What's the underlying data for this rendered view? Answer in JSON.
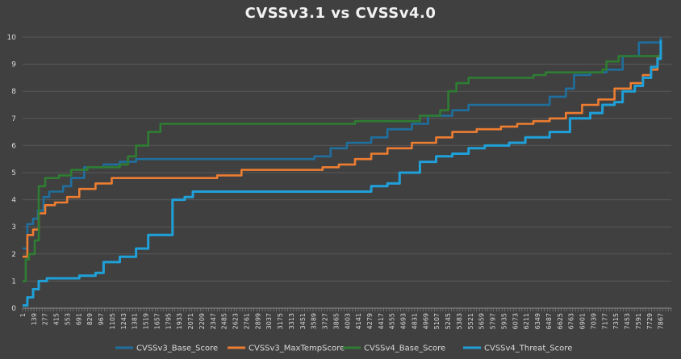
{
  "chart_data": {
    "type": "line",
    "title": "CVSSv3.1 vs CVSSv4.0",
    "xlabel": "",
    "ylabel": "",
    "xlim": [
      1,
      8000
    ],
    "ylim": [
      0,
      10
    ],
    "y_ticks": [
      "0",
      "1",
      "2",
      "3",
      "4",
      "5",
      "6",
      "7",
      "8",
      "9",
      "10"
    ],
    "x_tick_labels": [
      "1",
      "139",
      "277",
      "415",
      "553",
      "691",
      "829",
      "967",
      "1105",
      "1243",
      "1381",
      "1519",
      "1657",
      "1795",
      "1933",
      "2071",
      "2209",
      "2347",
      "2485",
      "2623",
      "2761",
      "2899",
      "3037",
      "3175",
      "3313",
      "3451",
      "3589",
      "3727",
      "3865",
      "4003",
      "4141",
      "4279",
      "4417",
      "4555",
      "4693",
      "4831",
      "4969",
      "5107",
      "5245",
      "5383",
      "5521",
      "5659",
      "5797",
      "5935",
      "6073",
      "6211",
      "6349",
      "6487",
      "6625",
      "6763",
      "6901",
      "7039",
      "7177",
      "7315",
      "7453",
      "7591",
      "7729",
      "7867"
    ],
    "grid": true,
    "legend_position": "bottom",
    "series": [
      {
        "name": "CVSSv3_Base_Score",
        "color": "#1f6f9e",
        "points": [
          [
            1,
            2.2
          ],
          [
            60,
            3.1
          ],
          [
            130,
            3.3
          ],
          [
            190,
            3.6
          ],
          [
            260,
            4.1
          ],
          [
            330,
            4.3
          ],
          [
            500,
            4.5
          ],
          [
            600,
            4.8
          ],
          [
            760,
            5.2
          ],
          [
            1000,
            5.3
          ],
          [
            1200,
            5.4
          ],
          [
            1400,
            5.5
          ],
          [
            3400,
            5.5
          ],
          [
            3600,
            5.6
          ],
          [
            3800,
            5.9
          ],
          [
            4000,
            6.1
          ],
          [
            4300,
            6.3
          ],
          [
            4500,
            6.6
          ],
          [
            4800,
            6.8
          ],
          [
            5000,
            7.1
          ],
          [
            5300,
            7.3
          ],
          [
            5500,
            7.5
          ],
          [
            6400,
            7.5
          ],
          [
            6500,
            7.8
          ],
          [
            6700,
            8.1
          ],
          [
            6800,
            8.6
          ],
          [
            7000,
            8.7
          ],
          [
            7200,
            8.8
          ],
          [
            7400,
            9.3
          ],
          [
            7600,
            9.8
          ],
          [
            7830,
            9.8
          ],
          [
            7870,
            10.0
          ]
        ]
      },
      {
        "name": "CVSSv3_MaxTempScore",
        "color": "#ed7d31",
        "points": [
          [
            1,
            1.9
          ],
          [
            60,
            2.7
          ],
          [
            130,
            2.9
          ],
          [
            200,
            3.5
          ],
          [
            280,
            3.8
          ],
          [
            400,
            3.9
          ],
          [
            550,
            4.1
          ],
          [
            700,
            4.4
          ],
          [
            900,
            4.6
          ],
          [
            1100,
            4.8
          ],
          [
            2200,
            4.8
          ],
          [
            2400,
            4.9
          ],
          [
            2700,
            5.1
          ],
          [
            3500,
            5.1
          ],
          [
            3700,
            5.2
          ],
          [
            3900,
            5.3
          ],
          [
            4100,
            5.5
          ],
          [
            4300,
            5.7
          ],
          [
            4500,
            5.9
          ],
          [
            4800,
            6.1
          ],
          [
            5100,
            6.3
          ],
          [
            5300,
            6.5
          ],
          [
            5600,
            6.6
          ],
          [
            5900,
            6.7
          ],
          [
            6100,
            6.8
          ],
          [
            6300,
            6.9
          ],
          [
            6500,
            7.0
          ],
          [
            6700,
            7.2
          ],
          [
            6900,
            7.5
          ],
          [
            7100,
            7.7
          ],
          [
            7300,
            8.1
          ],
          [
            7500,
            8.3
          ],
          [
            7650,
            8.6
          ],
          [
            7750,
            8.8
          ],
          [
            7830,
            9.3
          ],
          [
            7870,
            9.4
          ]
        ]
      },
      {
        "name": "CVSSv4_Base_Score",
        "color": "#2e7d32",
        "points": [
          [
            1,
            1.0
          ],
          [
            40,
            1.8
          ],
          [
            80,
            2.0
          ],
          [
            150,
            2.5
          ],
          [
            200,
            4.5
          ],
          [
            280,
            4.8
          ],
          [
            450,
            4.9
          ],
          [
            600,
            5.1
          ],
          [
            800,
            5.2
          ],
          [
            1200,
            5.3
          ],
          [
            1300,
            5.6
          ],
          [
            1400,
            6.0
          ],
          [
            1550,
            6.5
          ],
          [
            1700,
            6.8
          ],
          [
            4000,
            6.8
          ],
          [
            4100,
            6.9
          ],
          [
            4700,
            6.9
          ],
          [
            4900,
            7.1
          ],
          [
            5150,
            7.3
          ],
          [
            5250,
            8.0
          ],
          [
            5350,
            8.3
          ],
          [
            5500,
            8.5
          ],
          [
            6300,
            8.6
          ],
          [
            6450,
            8.7
          ],
          [
            7150,
            8.8
          ],
          [
            7200,
            9.1
          ],
          [
            7350,
            9.3
          ],
          [
            7800,
            9.3
          ],
          [
            7870,
            9.6
          ]
        ]
      },
      {
        "name": "CVSSv4_Threat_Score",
        "color": "#1fa0d8",
        "points": [
          [
            1,
            0.1
          ],
          [
            60,
            0.4
          ],
          [
            130,
            0.7
          ],
          [
            200,
            1.0
          ],
          [
            300,
            1.1
          ],
          [
            700,
            1.2
          ],
          [
            900,
            1.3
          ],
          [
            1000,
            1.7
          ],
          [
            1200,
            1.9
          ],
          [
            1400,
            2.2
          ],
          [
            1550,
            2.7
          ],
          [
            1800,
            2.7
          ],
          [
            1850,
            4.0
          ],
          [
            2000,
            4.1
          ],
          [
            2100,
            4.3
          ],
          [
            4200,
            4.3
          ],
          [
            4300,
            4.5
          ],
          [
            4500,
            4.6
          ],
          [
            4650,
            5.0
          ],
          [
            4900,
            5.4
          ],
          [
            5100,
            5.6
          ],
          [
            5300,
            5.7
          ],
          [
            5500,
            5.9
          ],
          [
            5700,
            6.0
          ],
          [
            6000,
            6.1
          ],
          [
            6200,
            6.3
          ],
          [
            6500,
            6.5
          ],
          [
            6750,
            7.0
          ],
          [
            7000,
            7.2
          ],
          [
            7150,
            7.5
          ],
          [
            7300,
            7.6
          ],
          [
            7400,
            8.0
          ],
          [
            7550,
            8.2
          ],
          [
            7650,
            8.5
          ],
          [
            7750,
            8.9
          ],
          [
            7830,
            9.2
          ],
          [
            7870,
            9.9
          ]
        ]
      }
    ]
  }
}
